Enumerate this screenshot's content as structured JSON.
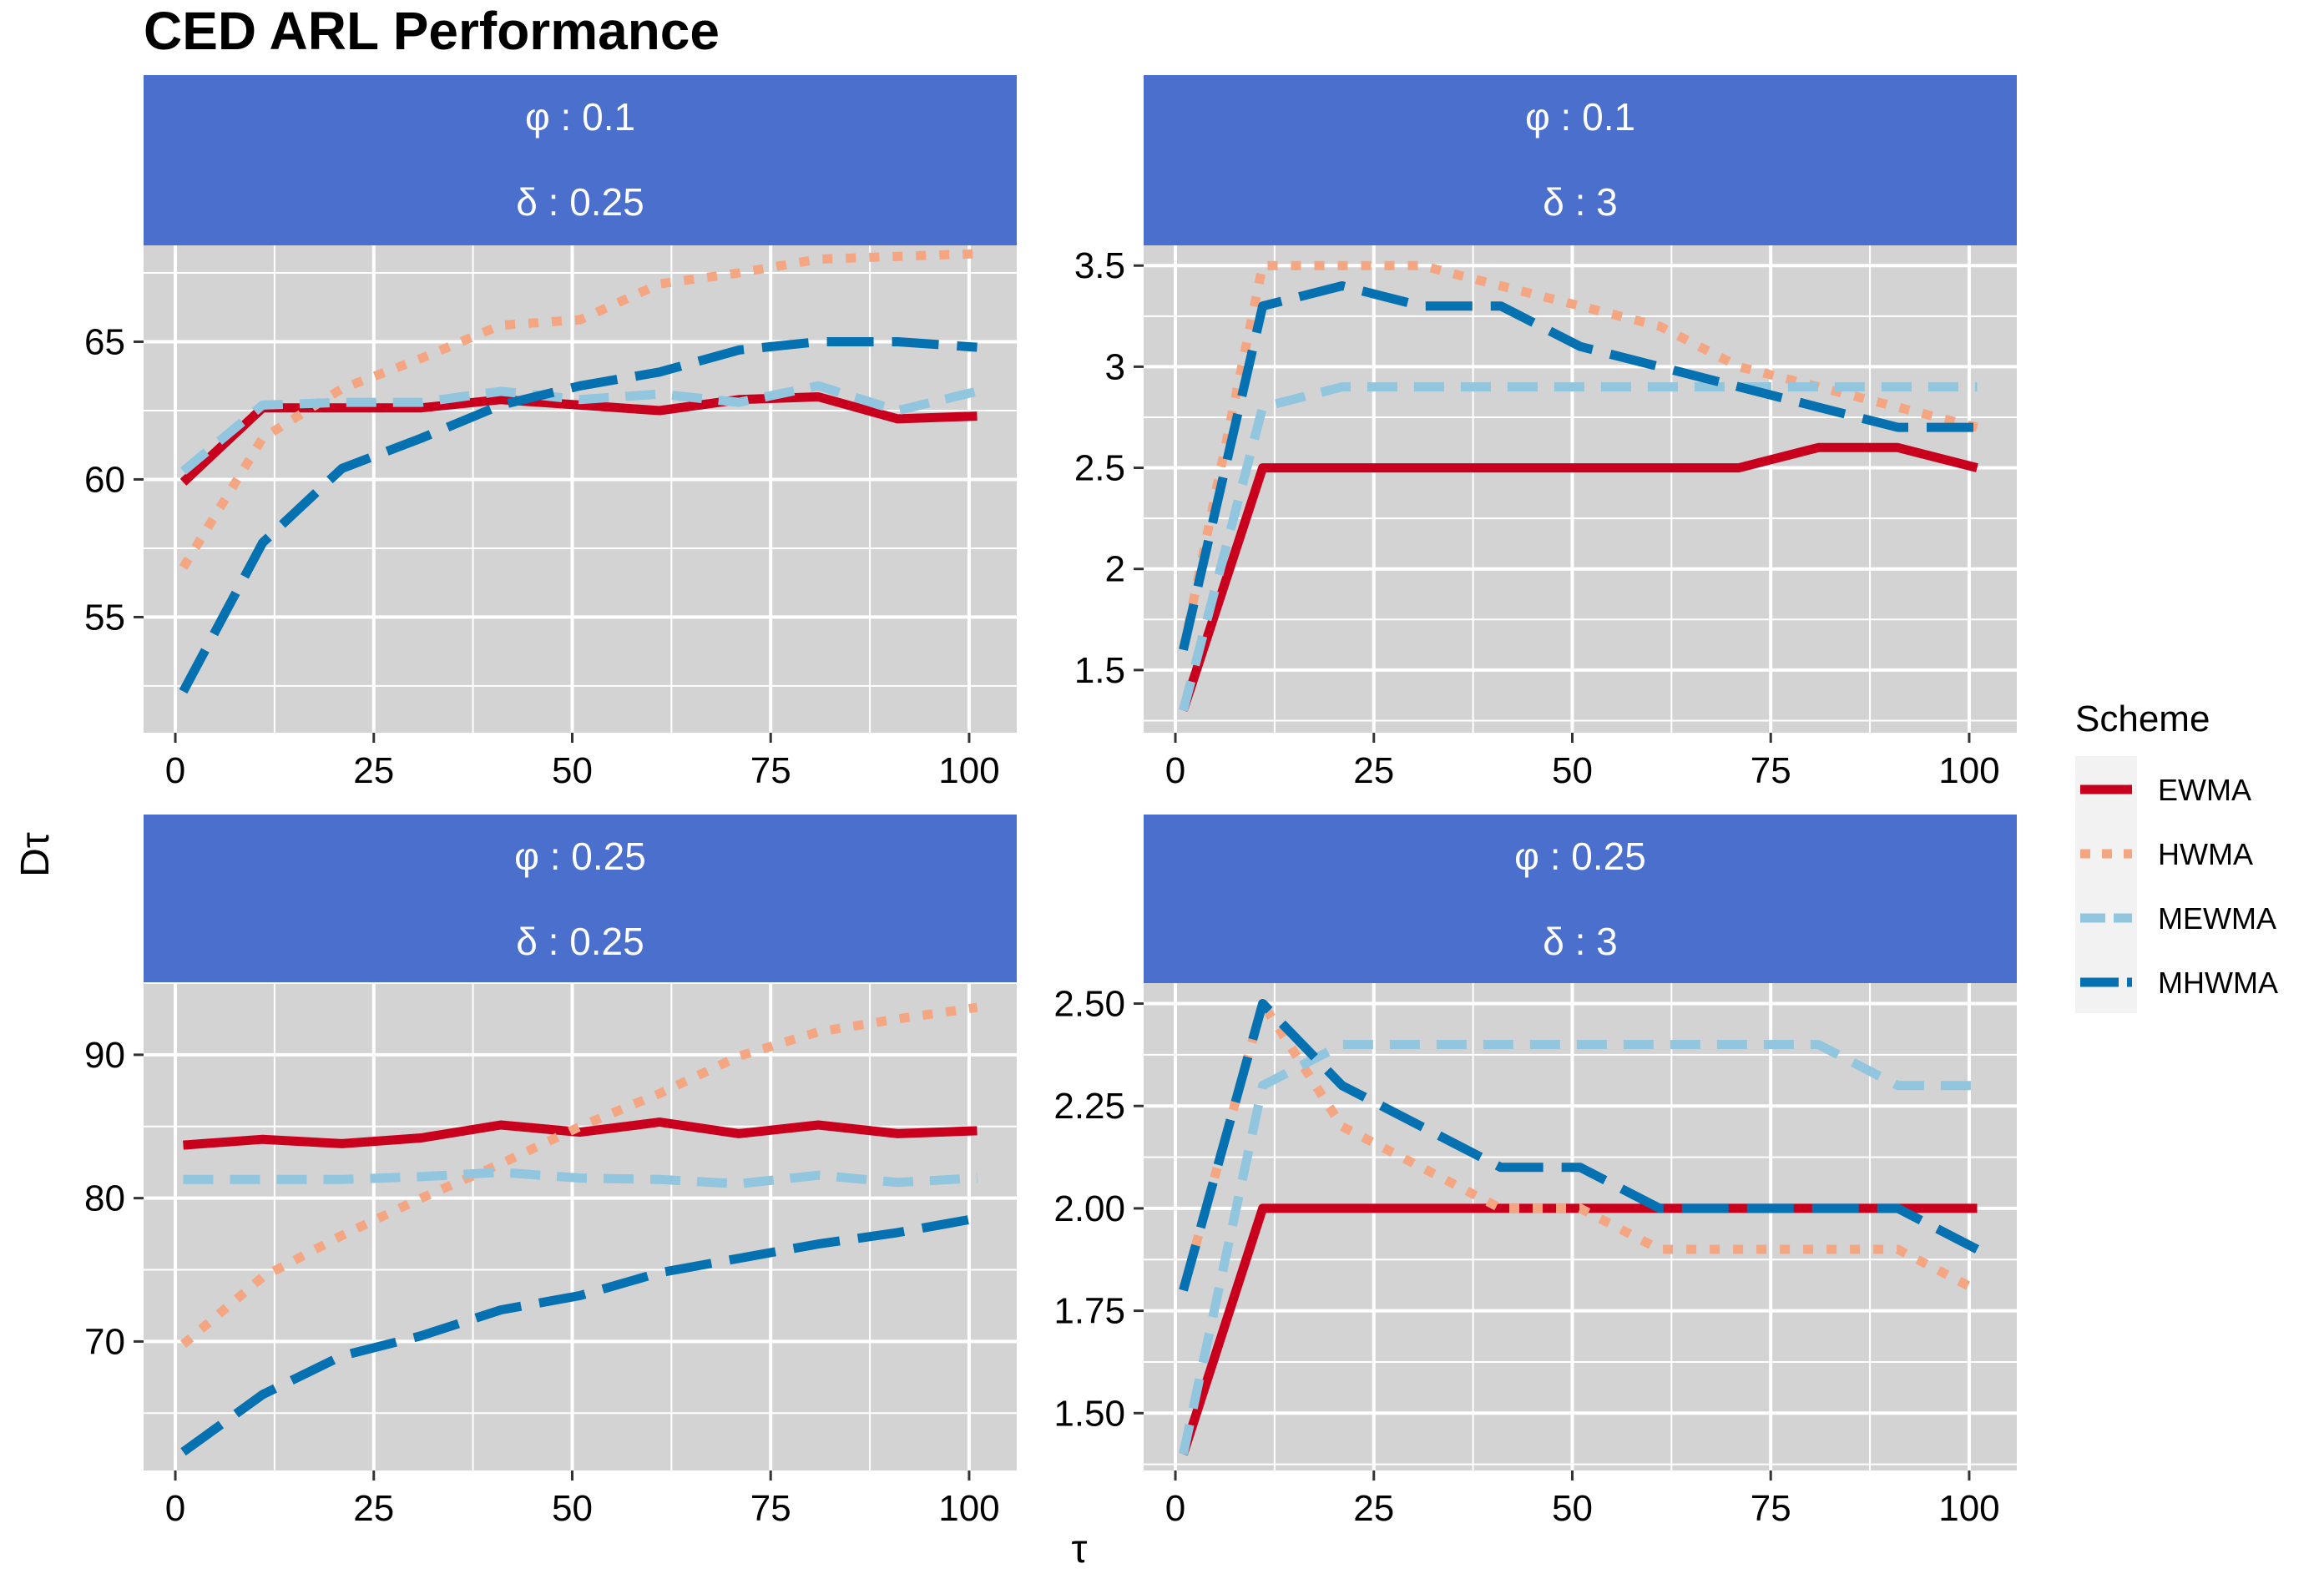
{
  "title": "CED ARL Performance",
  "xlabel": "τ",
  "ylabel": "Dτ",
  "legend": {
    "title": "Scheme",
    "position": "right",
    "entries": [
      {
        "name": "EWMA",
        "color": "#C8001E",
        "dash": "solid"
      },
      {
        "name": "HWMA",
        "color": "#F4A582",
        "dash": "dotted"
      },
      {
        "name": "MEWMA",
        "color": "#92C5DE",
        "dash": "dashed"
      },
      {
        "name": "MHWMA",
        "color": "#0571B0",
        "dash": "longdash"
      }
    ]
  },
  "colors": {
    "strip": "#4A6FCC",
    "panel_bg": "#D3D3D3",
    "grid": "#FFFFFF"
  },
  "chart_data": [
    {
      "type": "line",
      "strip": [
        "φ : 0.1",
        "δ : 0.25"
      ],
      "x": [
        1,
        11,
        21,
        31,
        41,
        51,
        61,
        71,
        81,
        91,
        101
      ],
      "xticks": [
        0,
        25,
        50,
        75,
        100
      ],
      "xlim": [
        -4,
        106
      ],
      "ylim": [
        50.8,
        68.5
      ],
      "yticks": [
        55,
        60,
        65
      ],
      "series": [
        {
          "name": "EWMA",
          "values": [
            59.9,
            62.6,
            62.6,
            62.6,
            62.9,
            62.7,
            62.5,
            62.9,
            63.0,
            62.2,
            62.3
          ]
        },
        {
          "name": "HWMA",
          "values": [
            56.8,
            61.5,
            63.3,
            64.4,
            65.6,
            65.8,
            67.1,
            67.5,
            68.0,
            68.1,
            68.2
          ]
        },
        {
          "name": "MEWMA",
          "values": [
            60.3,
            62.7,
            62.8,
            62.8,
            63.2,
            62.9,
            63.1,
            62.8,
            63.4,
            62.5,
            63.2
          ]
        },
        {
          "name": "MHWMA",
          "values": [
            52.3,
            57.7,
            60.4,
            61.5,
            62.7,
            63.4,
            63.9,
            64.7,
            65.0,
            65.0,
            64.8
          ]
        }
      ]
    },
    {
      "type": "line",
      "strip": [
        "φ : 0.1",
        "δ : 3"
      ],
      "x": [
        1,
        11,
        21,
        31,
        41,
        51,
        61,
        71,
        81,
        91,
        101
      ],
      "xticks": [
        0,
        25,
        50,
        75,
        100
      ],
      "xlim": [
        -4,
        106
      ],
      "ylim": [
        1.19,
        3.6
      ],
      "yticks": [
        1.5,
        2.0,
        2.5,
        3.0,
        3.5
      ],
      "series": [
        {
          "name": "EWMA",
          "values": [
            1.3,
            2.5,
            2.5,
            2.5,
            2.5,
            2.5,
            2.5,
            2.5,
            2.6,
            2.6,
            2.5
          ]
        },
        {
          "name": "HWMA",
          "values": [
            1.6,
            3.5,
            3.5,
            3.5,
            3.4,
            3.3,
            3.2,
            3.0,
            2.9,
            2.8,
            2.7
          ]
        },
        {
          "name": "MEWMA",
          "values": [
            1.3,
            2.8,
            2.9,
            2.9,
            2.9,
            2.9,
            2.9,
            2.9,
            2.9,
            2.9,
            2.9
          ]
        },
        {
          "name": "MHWMA",
          "values": [
            1.6,
            3.3,
            3.4,
            3.3,
            3.3,
            3.1,
            3.0,
            2.9,
            2.8,
            2.7,
            2.7
          ]
        }
      ]
    },
    {
      "type": "line",
      "strip": [
        "φ : 0.25",
        "δ : 0.25"
      ],
      "x": [
        1,
        11,
        21,
        31,
        41,
        51,
        61,
        71,
        81,
        91,
        101
      ],
      "xticks": [
        0,
        25,
        50,
        75,
        100
      ],
      "xlim": [
        -4,
        106
      ],
      "ylim": [
        61.0,
        95.0
      ],
      "yticks": [
        70,
        80,
        90
      ],
      "series": [
        {
          "name": "EWMA",
          "values": [
            83.7,
            84.1,
            83.8,
            84.2,
            85.1,
            84.6,
            85.3,
            84.5,
            85.1,
            84.5,
            84.7
          ]
        },
        {
          "name": "HWMA",
          "values": [
            69.8,
            74.5,
            77.4,
            80.0,
            82.4,
            85.0,
            87.3,
            89.9,
            91.6,
            92.5,
            93.3
          ]
        },
        {
          "name": "MEWMA",
          "values": [
            81.3,
            81.3,
            81.3,
            81.5,
            81.8,
            81.4,
            81.3,
            81.0,
            81.6,
            81.1,
            81.4
          ]
        },
        {
          "name": "MHWMA",
          "values": [
            62.3,
            66.3,
            69.0,
            70.4,
            72.2,
            73.2,
            74.8,
            75.8,
            76.8,
            77.6,
            78.6
          ]
        }
      ]
    },
    {
      "type": "line",
      "strip": [
        "φ : 0.25",
        "δ : 3"
      ],
      "x": [
        1,
        11,
        21,
        31,
        41,
        51,
        61,
        71,
        81,
        91,
        101
      ],
      "xticks": [
        0,
        25,
        50,
        75,
        100
      ],
      "xlim": [
        -4,
        106
      ],
      "ylim": [
        1.36,
        2.55
      ],
      "yticks": [
        1.5,
        1.75,
        2.0,
        2.25,
        2.5
      ],
      "ytick_labels": [
        "1.50",
        "1.75",
        "2.00",
        "2.25",
        "2.50"
      ],
      "series": [
        {
          "name": "EWMA",
          "values": [
            1.4,
            2.0,
            2.0,
            2.0,
            2.0,
            2.0,
            2.0,
            2.0,
            2.0,
            2.0,
            2.0
          ]
        },
        {
          "name": "HWMA",
          "values": [
            1.8,
            2.5,
            2.2,
            2.1,
            2.0,
            2.0,
            1.9,
            1.9,
            1.9,
            1.9,
            1.8
          ]
        },
        {
          "name": "MEWMA",
          "values": [
            1.4,
            2.3,
            2.4,
            2.4,
            2.4,
            2.4,
            2.4,
            2.4,
            2.4,
            2.3,
            2.3
          ]
        },
        {
          "name": "MHWMA",
          "values": [
            1.8,
            2.5,
            2.3,
            2.2,
            2.1,
            2.1,
            2.0,
            2.0,
            2.0,
            2.0,
            1.9
          ]
        }
      ]
    }
  ]
}
